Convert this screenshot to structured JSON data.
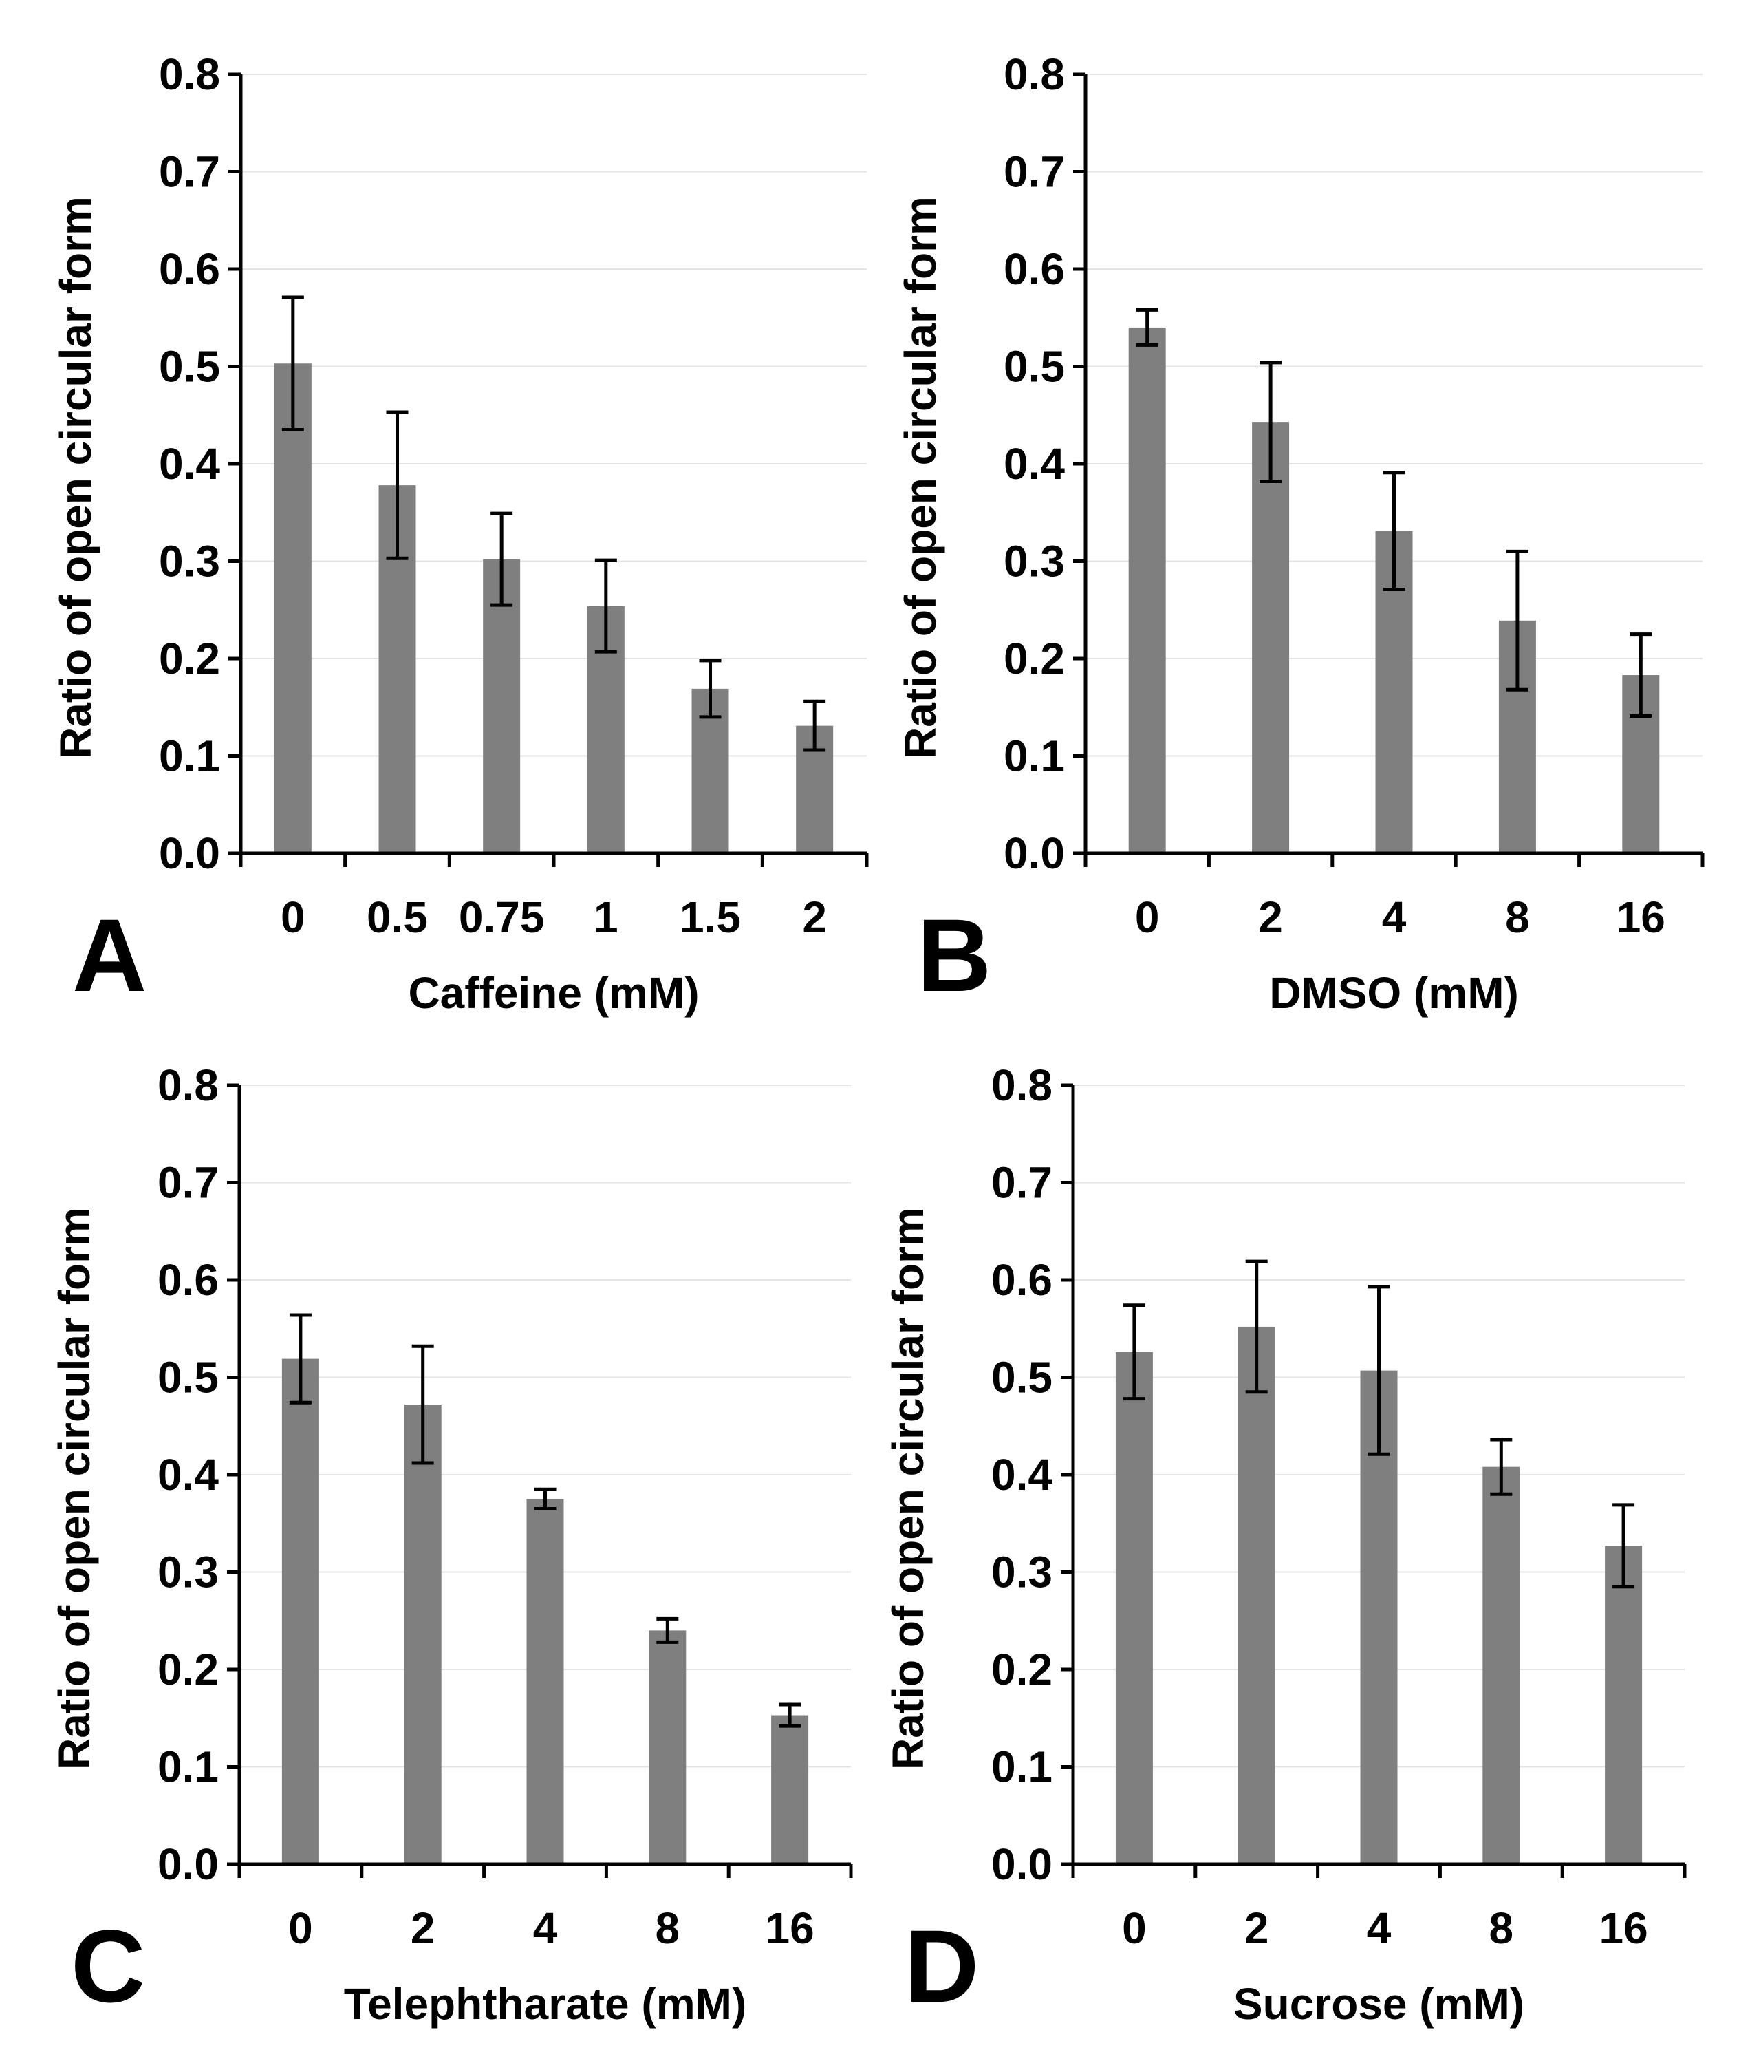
{
  "figure": {
    "bar_color": "#7f7f7f",
    "axis_color": "#000000",
    "grid_color": "#e4e4e4"
  },
  "chart_data": [
    {
      "type": "bar",
      "panel": "A",
      "title": "",
      "xlabel": "Caffeine (mM)",
      "ylabel": "Ratio of open circular form",
      "ylim": [
        0,
        0.8
      ],
      "yticks": [
        "0.0",
        "0.1",
        "0.2",
        "0.3",
        "0.4",
        "0.5",
        "0.6",
        "0.7",
        "0.8"
      ],
      "grid": true,
      "categories": [
        "0",
        "0.5",
        "0.75",
        "1",
        "1.5",
        "2"
      ],
      "values": [
        0.503,
        0.378,
        0.302,
        0.254,
        0.169,
        0.131
      ],
      "errors": [
        0.068,
        0.075,
        0.047,
        0.047,
        0.029,
        0.025
      ]
    },
    {
      "type": "bar",
      "panel": "B",
      "title": "",
      "xlabel": "DMSO (mM)",
      "ylabel": "Ratio of open circular form",
      "ylim": [
        0,
        0.8
      ],
      "yticks": [
        "0.0",
        "0.1",
        "0.2",
        "0.3",
        "0.4",
        "0.5",
        "0.6",
        "0.7",
        "0.8"
      ],
      "grid": true,
      "categories": [
        "0",
        "2",
        "4",
        "8",
        "16"
      ],
      "values": [
        0.54,
        0.443,
        0.331,
        0.239,
        0.183
      ],
      "errors": [
        0.018,
        0.061,
        0.06,
        0.071,
        0.042
      ]
    },
    {
      "type": "bar",
      "panel": "C",
      "title": "",
      "xlabel": "Telephtharate (mM)",
      "ylabel": "Ratio of open circular form",
      "ylim": [
        0,
        0.8
      ],
      "yticks": [
        "0.0",
        "0.1",
        "0.2",
        "0.3",
        "0.4",
        "0.5",
        "0.6",
        "0.7",
        "0.8"
      ],
      "grid": true,
      "categories": [
        "0",
        "2",
        "4",
        "8",
        "16"
      ],
      "values": [
        0.519,
        0.472,
        0.375,
        0.24,
        0.153
      ],
      "errors": [
        0.045,
        0.06,
        0.01,
        0.012,
        0.011
      ]
    },
    {
      "type": "bar",
      "panel": "D",
      "title": "",
      "xlabel": "Sucrose (mM)",
      "ylabel": "Ratio of open circular form",
      "ylim": [
        0,
        0.8
      ],
      "yticks": [
        "0.0",
        "0.1",
        "0.2",
        "0.3",
        "0.4",
        "0.5",
        "0.6",
        "0.7",
        "0.8"
      ],
      "grid": true,
      "categories": [
        "0",
        "2",
        "4",
        "8",
        "16"
      ],
      "values": [
        0.526,
        0.552,
        0.507,
        0.408,
        0.327
      ],
      "errors": [
        0.048,
        0.067,
        0.086,
        0.028,
        0.042
      ]
    }
  ]
}
